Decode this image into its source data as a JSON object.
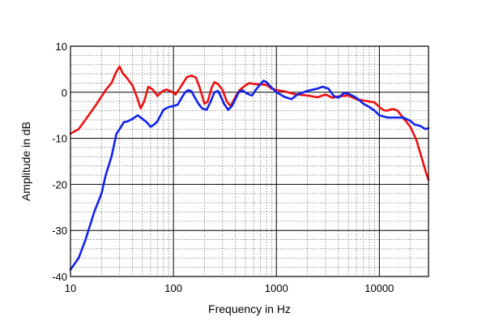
{
  "chart_data": {
    "type": "line",
    "title": "",
    "xlabel": "Frequency in Hz",
    "ylabel": "Amplitude in dB",
    "x_scale": "log",
    "xlim": [
      10,
      30000
    ],
    "ylim": [
      -40,
      10
    ],
    "x_ticks": [
      10,
      100,
      1000,
      10000
    ],
    "x_tick_labels": [
      "10",
      "100",
      "1000",
      "10000"
    ],
    "y_ticks": [
      10,
      0,
      -10,
      -20,
      -30,
      -40
    ],
    "y_tick_labels": [
      "10",
      "0",
      "-10",
      "-20",
      "-30",
      "-40"
    ],
    "grid": true,
    "legend": "none",
    "series": [
      {
        "color": "#ee1111",
        "points": [
          [
            10,
            -9
          ],
          [
            12,
            -8
          ],
          [
            15,
            -5
          ],
          [
            18,
            -2.5
          ],
          [
            22,
            0.5
          ],
          [
            25,
            2
          ],
          [
            28,
            4.5
          ],
          [
            30,
            5.6
          ],
          [
            32,
            4.2
          ],
          [
            35,
            3.2
          ],
          [
            40,
            1.5
          ],
          [
            45,
            -1.5
          ],
          [
            48,
            -3.5
          ],
          [
            52,
            -2
          ],
          [
            57,
            1.2
          ],
          [
            63,
            0.6
          ],
          [
            70,
            -0.8
          ],
          [
            78,
            0.2
          ],
          [
            85,
            0.6
          ],
          [
            95,
            0.2
          ],
          [
            105,
            -0.5
          ],
          [
            120,
            1.5
          ],
          [
            135,
            3.3
          ],
          [
            150,
            3.6
          ],
          [
            165,
            3.2
          ],
          [
            180,
            1
          ],
          [
            200,
            -2.5
          ],
          [
            215,
            -2
          ],
          [
            235,
            1
          ],
          [
            250,
            2.2
          ],
          [
            270,
            1.8
          ],
          [
            300,
            0.5
          ],
          [
            330,
            -2
          ],
          [
            360,
            -3
          ],
          [
            400,
            -1
          ],
          [
            440,
            0.5
          ],
          [
            500,
            1.5
          ],
          [
            550,
            2
          ],
          [
            600,
            1.8
          ],
          [
            700,
            1.7
          ],
          [
            800,
            1.6
          ],
          [
            900,
            0.8
          ],
          [
            1000,
            0.5
          ],
          [
            1200,
            0.2
          ],
          [
            1500,
            -0.4
          ],
          [
            2000,
            -0.7
          ],
          [
            2500,
            -1.1
          ],
          [
            3000,
            -0.5
          ],
          [
            3500,
            -1.2
          ],
          [
            4000,
            -0.9
          ],
          [
            5000,
            -0.7
          ],
          [
            6000,
            -1.5
          ],
          [
            7000,
            -1.8
          ],
          [
            8000,
            -2.0
          ],
          [
            9000,
            -2.2
          ],
          [
            10000,
            -3.2
          ],
          [
            11000,
            -3.9
          ],
          [
            12000,
            -4.0
          ],
          [
            13000,
            -3.7
          ],
          [
            14000,
            -3.7
          ],
          [
            15000,
            -4.0
          ],
          [
            17000,
            -5.5
          ],
          [
            20000,
            -7.5
          ],
          [
            23000,
            -10.5
          ],
          [
            26000,
            -14.5
          ],
          [
            28000,
            -17
          ],
          [
            30000,
            -19
          ]
        ]
      },
      {
        "color": "#1122ee",
        "points": [
          [
            10,
            -38.5
          ],
          [
            12,
            -36
          ],
          [
            14,
            -32
          ],
          [
            17,
            -26
          ],
          [
            20,
            -22
          ],
          [
            22,
            -18
          ],
          [
            25,
            -14
          ],
          [
            28,
            -9
          ],
          [
            30,
            -8
          ],
          [
            33,
            -6.5
          ],
          [
            36,
            -6.3
          ],
          [
            40,
            -5.8
          ],
          [
            45,
            -5
          ],
          [
            50,
            -5.8
          ],
          [
            55,
            -6.5
          ],
          [
            60,
            -7.5
          ],
          [
            65,
            -7
          ],
          [
            70,
            -6.3
          ],
          [
            80,
            -3.8
          ],
          [
            90,
            -3.2
          ],
          [
            100,
            -3
          ],
          [
            110,
            -2.7
          ],
          [
            120,
            -1.2
          ],
          [
            130,
            0
          ],
          [
            140,
            0.5
          ],
          [
            150,
            0.2
          ],
          [
            160,
            -1
          ],
          [
            175,
            -2.5
          ],
          [
            190,
            -3.5
          ],
          [
            210,
            -3.8
          ],
          [
            230,
            -2
          ],
          [
            250,
            0
          ],
          [
            270,
            0.3
          ],
          [
            290,
            -1
          ],
          [
            310,
            -2.5
          ],
          [
            340,
            -3.8
          ],
          [
            370,
            -3
          ],
          [
            400,
            -1.5
          ],
          [
            430,
            0
          ],
          [
            470,
            0.4
          ],
          [
            520,
            -0.3
          ],
          [
            580,
            -0.7
          ],
          [
            630,
            0.5
          ],
          [
            700,
            1.8
          ],
          [
            750,
            2.5
          ],
          [
            800,
            2.2
          ],
          [
            900,
            1
          ],
          [
            1000,
            0
          ],
          [
            1200,
            -1
          ],
          [
            1400,
            -1.5
          ],
          [
            1600,
            -0.5
          ],
          [
            2000,
            0.3
          ],
          [
            2500,
            0.8
          ],
          [
            2800,
            1.2
          ],
          [
            3200,
            0.8
          ],
          [
            3600,
            -0.8
          ],
          [
            4000,
            -1.2
          ],
          [
            4500,
            -0.2
          ],
          [
            5000,
            -0.3
          ],
          [
            6000,
            -1.2
          ],
          [
            7000,
            -2.5
          ],
          [
            8000,
            -3.2
          ],
          [
            9000,
            -4
          ],
          [
            10000,
            -5
          ],
          [
            12000,
            -5.5
          ],
          [
            14000,
            -5.5
          ],
          [
            17000,
            -5.5
          ],
          [
            20000,
            -6.2
          ],
          [
            22000,
            -7
          ],
          [
            25000,
            -7.3
          ],
          [
            28000,
            -8
          ],
          [
            30000,
            -7.8
          ]
        ]
      }
    ]
  }
}
